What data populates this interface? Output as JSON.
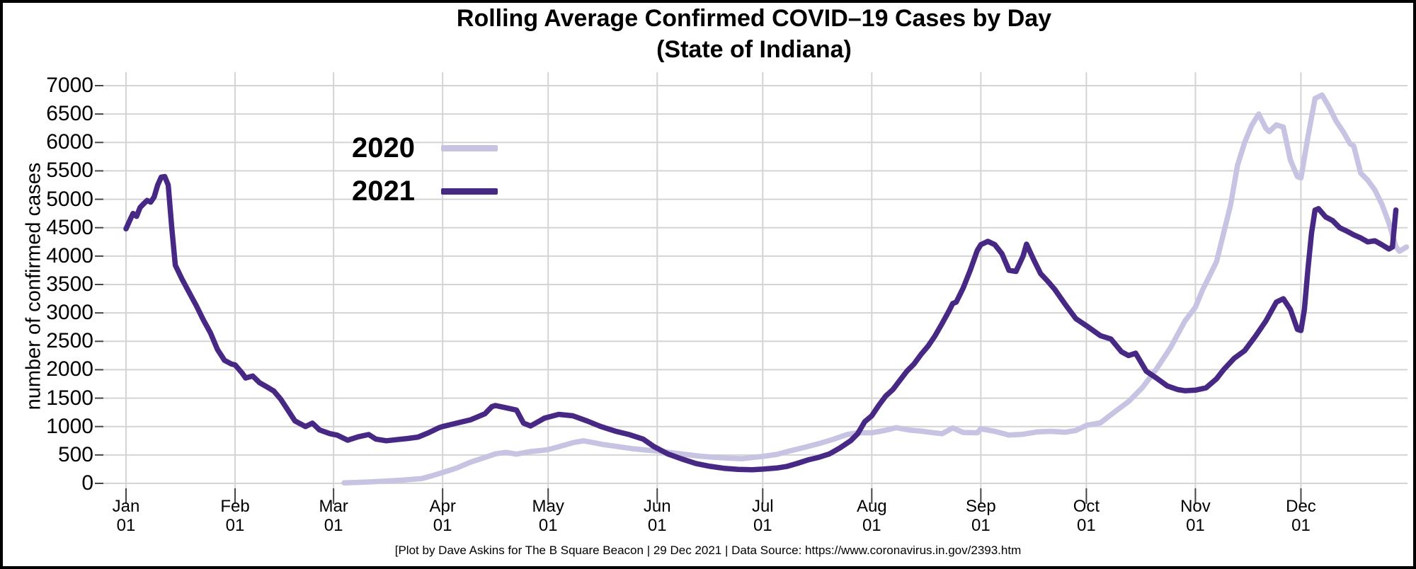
{
  "title": {
    "line1": "Rolling Average Confirmed COVID–19 Cases by Day",
    "line2": "(State of Indiana)"
  },
  "footer": {
    "credit": "[Plot by Dave Askins for The B Square Beacon | 29 Dec 2021 | Data Source: https://www.coronavirus.in.gov/2393.htm"
  },
  "colors": {
    "series_2020": "#c7c3e3",
    "series_2021": "#482885",
    "gridline": "#d4d4d4",
    "tick": "#444444",
    "text": "#000000",
    "frame_border": "#000000"
  },
  "chart_data": {
    "type": "line",
    "title": "Rolling Average Confirmed COVID–19 Cases by Day (State of Indiana)",
    "xlabel": "",
    "ylabel": "number of confirmed cases",
    "ylim": [
      0,
      7000
    ],
    "y_ticks": [
      0,
      500,
      1000,
      1500,
      2000,
      2500,
      3000,
      3500,
      4000,
      4500,
      5000,
      5500,
      6000,
      6500,
      7000
    ],
    "x_unit": "day_of_year",
    "grid": true,
    "legend_position": "upper-left-inside",
    "months": [
      {
        "label": "Jan",
        "day": "01",
        "doy": 1
      },
      {
        "label": "Feb",
        "day": "01",
        "doy": 32
      },
      {
        "label": "Mar",
        "day": "01",
        "doy": 60
      },
      {
        "label": "Apr",
        "day": "01",
        "doy": 91
      },
      {
        "label": "May",
        "day": "01",
        "doy": 121
      },
      {
        "label": "Jun",
        "day": "01",
        "doy": 152
      },
      {
        "label": "Jul",
        "day": "01",
        "doy": 182
      },
      {
        "label": "Aug",
        "day": "01",
        "doy": 213
      },
      {
        "label": "Sep",
        "day": "01",
        "doy": 244
      },
      {
        "label": "Oct",
        "day": "01",
        "doy": 274
      },
      {
        "label": "Nov",
        "day": "01",
        "doy": 305
      },
      {
        "label": "Dec",
        "day": "01",
        "doy": 335
      }
    ],
    "series": [
      {
        "name": "2020",
        "color": "#c7c3e3",
        "points": [
          [
            63,
            10
          ],
          [
            66,
            15
          ],
          [
            70,
            25
          ],
          [
            75,
            40
          ],
          [
            80,
            60
          ],
          [
            85,
            85
          ],
          [
            88,
            135
          ],
          [
            91,
            190
          ],
          [
            95,
            270
          ],
          [
            99,
            375
          ],
          [
            102,
            435
          ],
          [
            106,
            520
          ],
          [
            109,
            545
          ],
          [
            112,
            515
          ],
          [
            116,
            560
          ],
          [
            120,
            585
          ],
          [
            121,
            595
          ],
          [
            124,
            645
          ],
          [
            128,
            715
          ],
          [
            131,
            750
          ],
          [
            134,
            715
          ],
          [
            137,
            680
          ],
          [
            141,
            645
          ],
          [
            145,
            610
          ],
          [
            149,
            585
          ],
          [
            152,
            570
          ],
          [
            156,
            540
          ],
          [
            160,
            510
          ],
          [
            164,
            480
          ],
          [
            168,
            460
          ],
          [
            172,
            445
          ],
          [
            176,
            435
          ],
          [
            179,
            455
          ],
          [
            182,
            475
          ],
          [
            186,
            510
          ],
          [
            190,
            575
          ],
          [
            194,
            635
          ],
          [
            198,
            700
          ],
          [
            202,
            775
          ],
          [
            206,
            860
          ],
          [
            209,
            890
          ],
          [
            213,
            890
          ],
          [
            217,
            935
          ],
          [
            220,
            980
          ],
          [
            224,
            935
          ],
          [
            227,
            920
          ],
          [
            230,
            895
          ],
          [
            233,
            875
          ],
          [
            236,
            975
          ],
          [
            239,
            895
          ],
          [
            243,
            890
          ],
          [
            244,
            960
          ],
          [
            248,
            915
          ],
          [
            252,
            850
          ],
          [
            256,
            865
          ],
          [
            260,
            905
          ],
          [
            264,
            915
          ],
          [
            268,
            900
          ],
          [
            271,
            930
          ],
          [
            274,
            1020
          ],
          [
            278,
            1065
          ],
          [
            282,
            1255
          ],
          [
            286,
            1440
          ],
          [
            290,
            1690
          ],
          [
            294,
            2020
          ],
          [
            298,
            2395
          ],
          [
            302,
            2855
          ],
          [
            305,
            3100
          ],
          [
            307,
            3400
          ],
          [
            309,
            3650
          ],
          [
            311,
            3900
          ],
          [
            313,
            4400
          ],
          [
            315,
            4900
          ],
          [
            317,
            5600
          ],
          [
            319,
            6000
          ],
          [
            321,
            6300
          ],
          [
            323,
            6500
          ],
          [
            325,
            6250
          ],
          [
            326,
            6190
          ],
          [
            328,
            6310
          ],
          [
            330,
            6270
          ],
          [
            332,
            5690
          ],
          [
            334,
            5400
          ],
          [
            335,
            5375
          ],
          [
            337,
            6100
          ],
          [
            339,
            6775
          ],
          [
            341,
            6835
          ],
          [
            343,
            6625
          ],
          [
            345,
            6375
          ],
          [
            347,
            6190
          ],
          [
            349,
            5975
          ],
          [
            350,
            5940
          ],
          [
            352,
            5460
          ],
          [
            354,
            5335
          ],
          [
            356,
            5165
          ],
          [
            358,
            4915
          ],
          [
            360,
            4585
          ],
          [
            362,
            4165
          ],
          [
            363,
            4085
          ],
          [
            365,
            4160
          ]
        ]
      },
      {
        "name": "2021",
        "color": "#482885",
        "points": [
          [
            1,
            4480
          ],
          [
            2,
            4620
          ],
          [
            3,
            4750
          ],
          [
            4,
            4700
          ],
          [
            5,
            4855
          ],
          [
            6,
            4920
          ],
          [
            7,
            4980
          ],
          [
            8,
            4950
          ],
          [
            9,
            5040
          ],
          [
            10,
            5250
          ],
          [
            11,
            5390
          ],
          [
            12,
            5400
          ],
          [
            13,
            5250
          ],
          [
            14,
            4500
          ],
          [
            15,
            3840
          ],
          [
            17,
            3585
          ],
          [
            19,
            3355
          ],
          [
            21,
            3125
          ],
          [
            23,
            2875
          ],
          [
            25,
            2650
          ],
          [
            27,
            2355
          ],
          [
            29,
            2165
          ],
          [
            31,
            2100
          ],
          [
            32,
            2085
          ],
          [
            34,
            1940
          ],
          [
            35,
            1855
          ],
          [
            37,
            1890
          ],
          [
            39,
            1770
          ],
          [
            41,
            1700
          ],
          [
            43,
            1625
          ],
          [
            45,
            1480
          ],
          [
            47,
            1290
          ],
          [
            49,
            1100
          ],
          [
            52,
            1000
          ],
          [
            54,
            1060
          ],
          [
            56,
            940
          ],
          [
            59,
            875
          ],
          [
            61,
            850
          ],
          [
            64,
            760
          ],
          [
            67,
            820
          ],
          [
            70,
            860
          ],
          [
            72,
            780
          ],
          [
            75,
            750
          ],
          [
            78,
            770
          ],
          [
            81,
            790
          ],
          [
            84,
            815
          ],
          [
            87,
            890
          ],
          [
            90,
            980
          ],
          [
            91,
            1000
          ],
          [
            95,
            1060
          ],
          [
            99,
            1120
          ],
          [
            103,
            1225
          ],
          [
            105,
            1350
          ],
          [
            106,
            1370
          ],
          [
            109,
            1330
          ],
          [
            112,
            1290
          ],
          [
            114,
            1060
          ],
          [
            116,
            1010
          ],
          [
            120,
            1150
          ],
          [
            124,
            1215
          ],
          [
            128,
            1190
          ],
          [
            132,
            1100
          ],
          [
            136,
            1000
          ],
          [
            140,
            920
          ],
          [
            144,
            860
          ],
          [
            148,
            780
          ],
          [
            151,
            650
          ],
          [
            155,
            520
          ],
          [
            159,
            430
          ],
          [
            163,
            350
          ],
          [
            167,
            300
          ],
          [
            171,
            265
          ],
          [
            175,
            245
          ],
          [
            179,
            240
          ],
          [
            182,
            250
          ],
          [
            186,
            270
          ],
          [
            189,
            300
          ],
          [
            192,
            355
          ],
          [
            195,
            415
          ],
          [
            198,
            460
          ],
          [
            201,
            520
          ],
          [
            204,
            625
          ],
          [
            207,
            750
          ],
          [
            209,
            875
          ],
          [
            211,
            1085
          ],
          [
            213,
            1190
          ],
          [
            215,
            1375
          ],
          [
            217,
            1540
          ],
          [
            219,
            1650
          ],
          [
            221,
            1815
          ],
          [
            223,
            1975
          ],
          [
            225,
            2100
          ],
          [
            227,
            2270
          ],
          [
            229,
            2415
          ],
          [
            231,
            2600
          ],
          [
            233,
            2815
          ],
          [
            235,
            3040
          ],
          [
            236,
            3165
          ],
          [
            237,
            3190
          ],
          [
            239,
            3440
          ],
          [
            241,
            3750
          ],
          [
            243,
            4100
          ],
          [
            244,
            4200
          ],
          [
            246,
            4260
          ],
          [
            248,
            4200
          ],
          [
            250,
            4040
          ],
          [
            252,
            3750
          ],
          [
            254,
            3730
          ],
          [
            256,
            4000
          ],
          [
            257,
            4210
          ],
          [
            259,
            3940
          ],
          [
            261,
            3690
          ],
          [
            263,
            3560
          ],
          [
            265,
            3415
          ],
          [
            268,
            3150
          ],
          [
            271,
            2900
          ],
          [
            274,
            2775
          ],
          [
            278,
            2600
          ],
          [
            281,
            2540
          ],
          [
            284,
            2315
          ],
          [
            286,
            2250
          ],
          [
            288,
            2290
          ],
          [
            291,
            1975
          ],
          [
            294,
            1850
          ],
          [
            297,
            1715
          ],
          [
            300,
            1650
          ],
          [
            302,
            1630
          ],
          [
            305,
            1640
          ],
          [
            308,
            1680
          ],
          [
            311,
            1840
          ],
          [
            313,
            2000
          ],
          [
            316,
            2200
          ],
          [
            319,
            2335
          ],
          [
            322,
            2585
          ],
          [
            325,
            2855
          ],
          [
            328,
            3190
          ],
          [
            330,
            3250
          ],
          [
            332,
            3060
          ],
          [
            334,
            2710
          ],
          [
            335,
            2690
          ],
          [
            336,
            3060
          ],
          [
            337,
            3775
          ],
          [
            338,
            4400
          ],
          [
            339,
            4810
          ],
          [
            340,
            4835
          ],
          [
            342,
            4690
          ],
          [
            344,
            4625
          ],
          [
            346,
            4500
          ],
          [
            348,
            4440
          ],
          [
            350,
            4375
          ],
          [
            352,
            4320
          ],
          [
            354,
            4250
          ],
          [
            356,
            4270
          ],
          [
            358,
            4200
          ],
          [
            360,
            4125
          ],
          [
            361,
            4160
          ],
          [
            362,
            4810
          ]
        ]
      }
    ]
  }
}
